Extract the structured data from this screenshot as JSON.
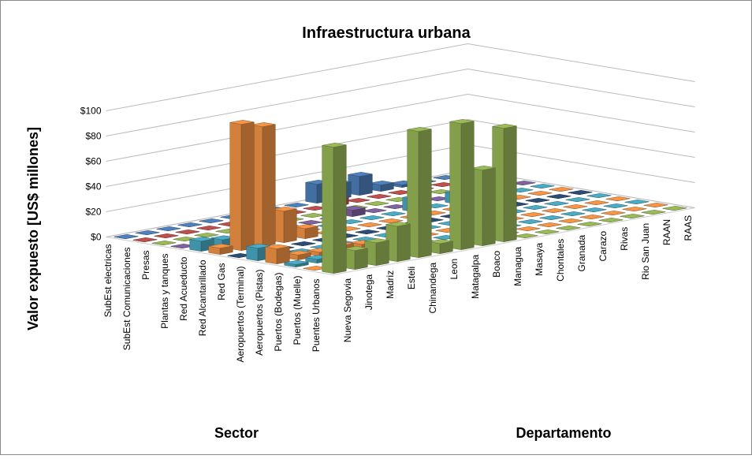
{
  "chart_data": {
    "type": "bar3d",
    "title": "Infraestructura  urbana",
    "y_label": "Valor expuesto [US$ millones]",
    "x_label": "Sector",
    "z_label": "Departamento",
    "categories": [
      "Nueva Segovia",
      "Jinotega",
      "Madriz",
      "Esteli",
      "Chinandega",
      "Leon",
      "Matagalpa",
      "Boaco",
      "Managua",
      "Masaya",
      "Chontales",
      "Granada",
      "Carazo",
      "Rivas",
      "Rio San Juan",
      "RAAN",
      "RAAS"
    ],
    "ylim": [
      0,
      100
    ],
    "yticks": [
      {
        "value": 0,
        "label": "$0"
      },
      {
        "value": 20,
        "label": "$20"
      },
      {
        "value": 40,
        "label": "$40"
      },
      {
        "value": 60,
        "label": "$60"
      },
      {
        "value": 80,
        "label": "$80"
      },
      {
        "value": 100,
        "label": "$100"
      }
    ],
    "grid": true,
    "series": [
      {
        "name": "SubEst electricas",
        "color": "#4f81bd",
        "values": [
          0,
          0,
          0,
          0,
          0,
          0,
          0,
          0,
          0,
          15,
          12,
          15,
          5,
          2,
          0,
          0,
          0
        ]
      },
      {
        "name": "SubEst Comunicaciones",
        "color": "#c0504d",
        "values": [
          0,
          0,
          0,
          0,
          0,
          0,
          0,
          0,
          0,
          5,
          0,
          0,
          0,
          0,
          0,
          0,
          0
        ]
      },
      {
        "name": "Presas",
        "color": "#9bbb59",
        "values": [
          0,
          0,
          0,
          0,
          0,
          0,
          0,
          0,
          0,
          0,
          0,
          0,
          0,
          0,
          0,
          0,
          0
        ]
      },
      {
        "name": "Plantas y tanques",
        "color": "#8064a2",
        "values": [
          0,
          0,
          0,
          0,
          0,
          0,
          0,
          0,
          5,
          0,
          0,
          0,
          0,
          0,
          0,
          0,
          0
        ]
      },
      {
        "name": "Red Acueducto",
        "color": "#4bacc6",
        "values": [
          8,
          6,
          7,
          6,
          0,
          0,
          0,
          0,
          0,
          0,
          10,
          0,
          8,
          5,
          0,
          0,
          0
        ]
      },
      {
        "name": "Red Alcantarillado",
        "color": "#f79646",
        "values": [
          5,
          100,
          95,
          25,
          8,
          0,
          0,
          0,
          0,
          0,
          0,
          0,
          0,
          0,
          0,
          0,
          0
        ]
      },
      {
        "name": "Red Gas",
        "color": "#2c4d75",
        "values": [
          0,
          0,
          0,
          0,
          0,
          0,
          0,
          0,
          0,
          0,
          0,
          0,
          0,
          0,
          0,
          0,
          0
        ]
      },
      {
        "name": "Aeropuertos  (Terminal)",
        "color": "#4bacc6",
        "values": [
          10,
          2,
          0,
          0,
          0,
          0,
          0,
          0,
          0,
          0,
          0,
          0,
          0,
          0,
          0,
          0,
          0
        ]
      },
      {
        "name": "Aeropuertos  (Pistas)",
        "color": "#f79646",
        "values": [
          12,
          4,
          3,
          5,
          3,
          0,
          0,
          0,
          0,
          0,
          0,
          0,
          0,
          0,
          0,
          0,
          0
        ]
      },
      {
        "name": "Puertos (Bodegas)",
        "color": "#4bacc6",
        "values": [
          2,
          3,
          0,
          0,
          0,
          0,
          0,
          0,
          0,
          0,
          0,
          0,
          0,
          0,
          0,
          0,
          0
        ]
      },
      {
        "name": "Puertos  (Muelle)",
        "color": "#f79646",
        "values": [
          0,
          4,
          3,
          0,
          0,
          0,
          0,
          0,
          0,
          0,
          0,
          0,
          0,
          0,
          0,
          0,
          0
        ]
      },
      {
        "name": "Puentes  Urbanos",
        "color": "#9bbb59",
        "values": [
          100,
          15,
          18,
          28,
          100,
          8,
          100,
          60,
          90,
          0,
          0,
          0,
          0,
          0,
          0,
          0,
          0
        ]
      }
    ]
  }
}
